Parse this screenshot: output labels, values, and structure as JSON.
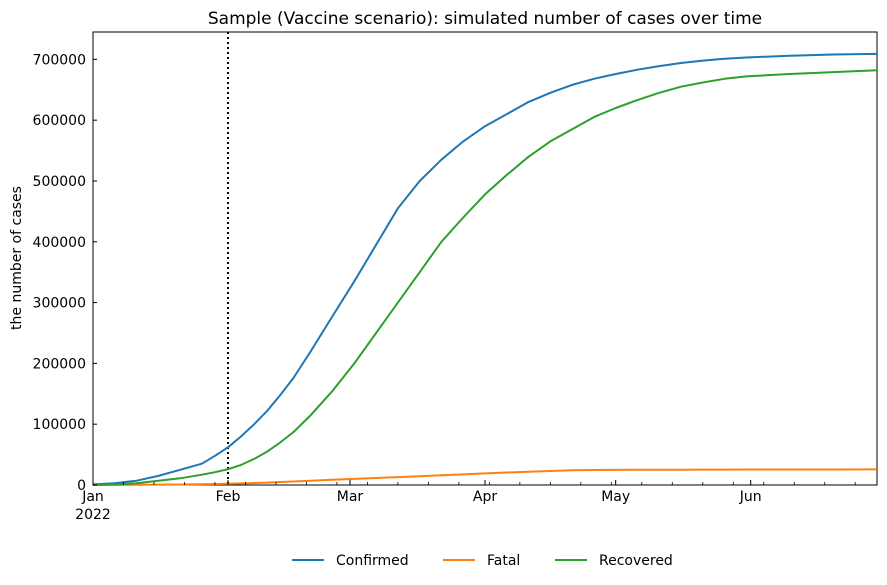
{
  "chart_data": {
    "type": "line",
    "title": "Sample (Vaccine scenario): simulated number of cases over time",
    "xlabel": "",
    "ylabel": "the number of cases",
    "xlim": [
      0,
      180
    ],
    "ylim": [
      0,
      745000
    ],
    "x_ticks": [
      {
        "day": 0,
        "label": "Jan",
        "sublabel": "2022"
      },
      {
        "day": 31,
        "label": "Feb"
      },
      {
        "day": 59,
        "label": "Mar"
      },
      {
        "day": 90,
        "label": "Apr"
      },
      {
        "day": 120,
        "label": "May"
      },
      {
        "day": 151,
        "label": "Jun"
      }
    ],
    "y_ticks": [
      0,
      100000,
      200000,
      300000,
      400000,
      500000,
      600000,
      700000
    ],
    "y_tick_labels": [
      "0",
      "100000",
      "200000",
      "300000",
      "400000",
      "500000",
      "600000",
      "700000"
    ],
    "vline_day": 31,
    "x": [
      0,
      5,
      10,
      15,
      20,
      25,
      28,
      31,
      34,
      37,
      40,
      43,
      46,
      50,
      55,
      60,
      65,
      70,
      75,
      80,
      85,
      90,
      95,
      100,
      105,
      110,
      115,
      120,
      125,
      130,
      135,
      140,
      145,
      150,
      160,
      170,
      180
    ],
    "series": [
      {
        "name": "Confirmed",
        "color": "#1f77b4",
        "values": [
          1000,
          3000,
          7000,
          15000,
          25000,
          35000,
          48000,
          62000,
          80000,
          100000,
          122000,
          148000,
          176000,
          220000,
          278000,
          335000,
          395000,
          455000,
          500000,
          535000,
          565000,
          590000,
          610000,
          630000,
          645000,
          658000,
          668000,
          676000,
          683000,
          689000,
          694000,
          698000,
          701000,
          703000,
          706000,
          708000,
          709000
        ]
      },
      {
        "name": "Fatal",
        "color": "#ff7f0e",
        "values": [
          0,
          100,
          300,
          600,
          900,
          1300,
          1700,
          2000,
          2600,
          3300,
          4000,
          4900,
          5700,
          7000,
          8500,
          10000,
          11500,
          13000,
          14500,
          16000,
          17500,
          19000,
          20500,
          21800,
          23000,
          24100,
          24600,
          24800,
          24950,
          25100,
          25200,
          25300,
          25400,
          25450,
          25500,
          25550,
          25600
        ]
      },
      {
        "name": "Recovered",
        "color": "#2ca02c",
        "values": [
          0,
          1000,
          3000,
          7000,
          11000,
          17000,
          21000,
          26000,
          33000,
          43000,
          55000,
          70000,
          87000,
          115000,
          155000,
          200000,
          250000,
          300000,
          350000,
          400000,
          440000,
          478000,
          510000,
          540000,
          565000,
          585000,
          605000,
          620000,
          633000,
          645000,
          655000,
          662000,
          668000,
          672000,
          676000,
          679000,
          682000
        ]
      }
    ],
    "legend": {
      "position": "bottom-center",
      "entries": [
        "Confirmed",
        "Fatal",
        "Recovered"
      ]
    }
  }
}
